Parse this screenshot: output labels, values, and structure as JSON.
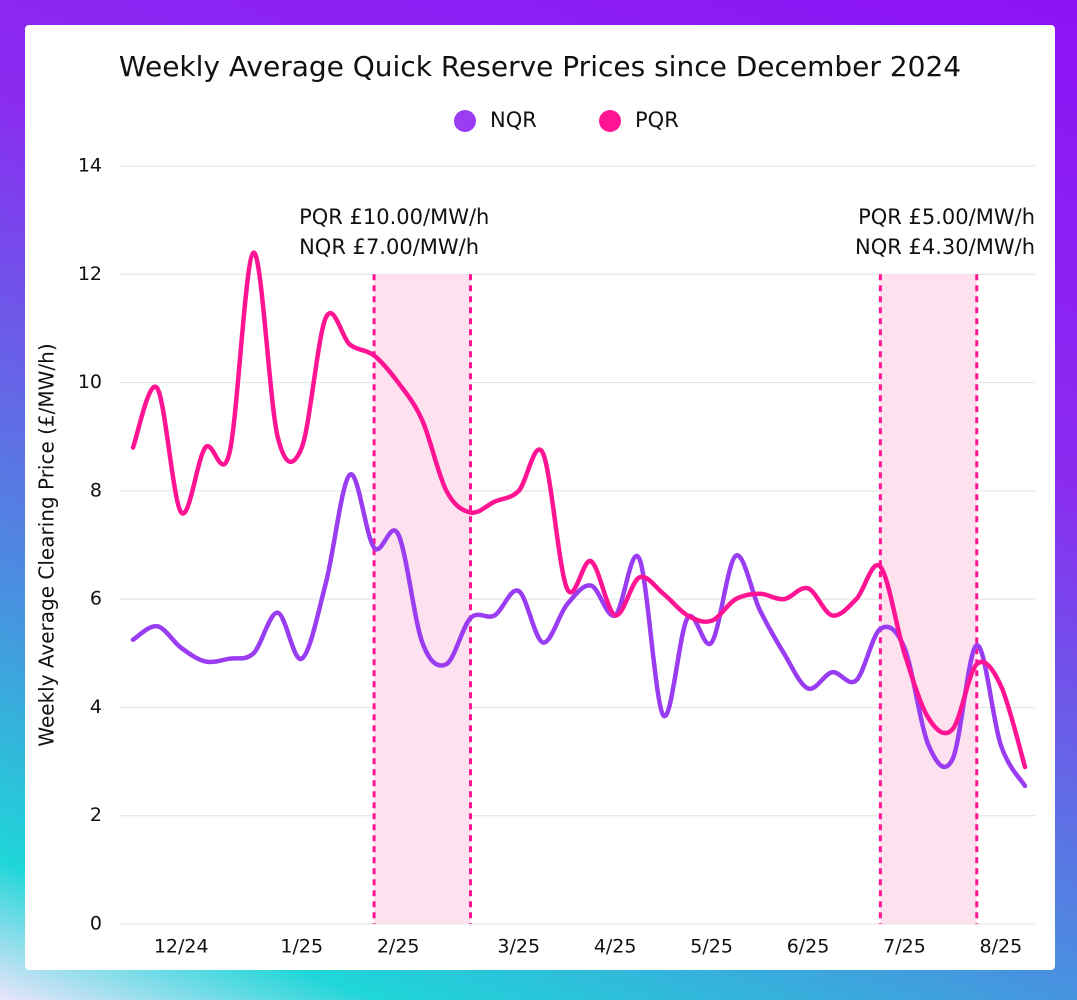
{
  "chart_data": {
    "type": "line",
    "title": "Weekly Average Quick Reserve Prices since December 2024",
    "y_label": "Weekly Average Clearing Price (£/MW/h)",
    "categories": [
      null,
      null,
      "12/24",
      null,
      null,
      null,
      null,
      "1/25",
      null,
      null,
      null,
      "2/25",
      null,
      null,
      null,
      null,
      "3/25",
      null,
      null,
      null,
      "4/25",
      null,
      null,
      null,
      "5/25",
      null,
      null,
      null,
      "6/25",
      null,
      null,
      null,
      "7/25",
      null,
      null,
      null,
      "8/25",
      null
    ],
    "series": [
      {
        "name": "NQR",
        "color": "#9a3df2",
        "values": [
          5.25,
          5.5,
          5.1,
          4.85,
          4.9,
          5.0,
          5.75,
          4.9,
          6.3,
          8.3,
          6.95,
          7.2,
          5.2,
          4.8,
          5.65,
          5.7,
          6.15,
          5.2,
          5.9,
          6.25,
          5.7,
          6.75,
          3.85,
          5.65,
          5.2,
          6.8,
          5.8,
          5.0,
          4.35,
          4.65,
          4.5,
          5.45,
          5.1,
          3.3,
          3.05,
          5.15,
          3.3,
          2.55
        ]
      },
      {
        "name": "PQR",
        "color": "#ff1493",
        "values": [
          8.8,
          9.9,
          7.6,
          8.8,
          8.7,
          12.4,
          9.0,
          8.8,
          11.2,
          10.7,
          10.5,
          10.0,
          9.3,
          8.0,
          7.6,
          7.8,
          8.0,
          8.7,
          6.2,
          6.7,
          5.7,
          6.4,
          6.1,
          5.7,
          5.6,
          6.0,
          6.1,
          6.0,
          6.2,
          5.7,
          6.0,
          6.6,
          5.0,
          3.8,
          3.6,
          4.8,
          4.4,
          2.9
        ]
      }
    ],
    "highlights": [
      {
        "start": 10,
        "end": 14,
        "lines": [
          "PQR £10.00/MW/h",
          "NQR £7.00/MW/h"
        ]
      },
      {
        "start": 31,
        "end": 35,
        "lines": [
          "PQR £5.00/MW/h",
          "NQR £4.30/MW/h"
        ]
      }
    ],
    "ylim": [
      0,
      14
    ],
    "yticks": [
      0,
      2,
      4,
      6,
      8,
      10,
      12,
      14
    ],
    "grid": true,
    "legend": "top"
  }
}
